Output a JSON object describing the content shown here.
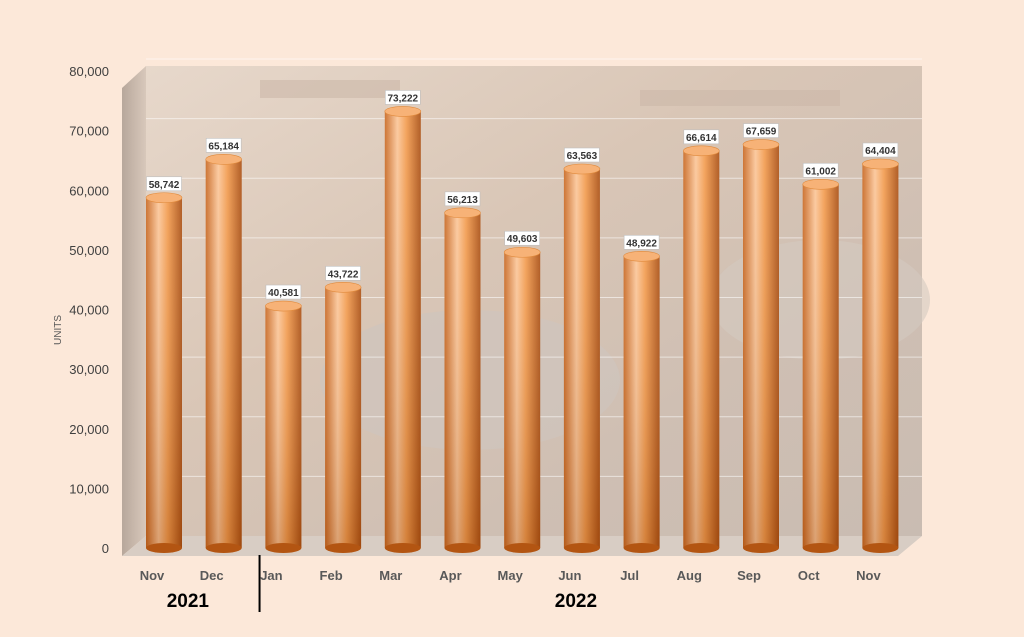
{
  "chart_data": {
    "type": "bar",
    "title": "",
    "xlabel": "",
    "ylabel": "UNITS",
    "ylim": [
      0,
      80000
    ],
    "yticks": [
      "0",
      "10,000",
      "20,000",
      "30,000",
      "40,000",
      "50,000",
      "60,000",
      "70,000",
      "80,000"
    ],
    "grid": true,
    "categories": [
      "Nov",
      "Dec",
      "Jan",
      "Feb",
      "Mar",
      "Apr",
      "May",
      "Jun",
      "Jul",
      "Aug",
      "Sep",
      "Oct",
      "Nov"
    ],
    "values": [
      58742,
      65184,
      40581,
      43722,
      73222,
      56213,
      49603,
      63563,
      48922,
      66614,
      67659,
      61002,
      64404
    ],
    "value_labels": [
      "58,742",
      "65,184",
      "40,581",
      "43,722",
      "73,222",
      "56,213",
      "49,603",
      "63,563",
      "48,922",
      "66,614",
      "67,659",
      "61,002",
      "64,404"
    ],
    "year_groups": [
      {
        "label": "2021",
        "count": 2
      },
      {
        "label": "2022",
        "count": 11
      }
    ],
    "bar_style": "3d-cylinder",
    "colors": {
      "bar_light": "#fbc597",
      "bar_mid": "#f0913f",
      "bar_dark": "#b55714",
      "background": "#fce8d9",
      "plot_backdrop": "photo (mall showroom with cars)"
    }
  }
}
